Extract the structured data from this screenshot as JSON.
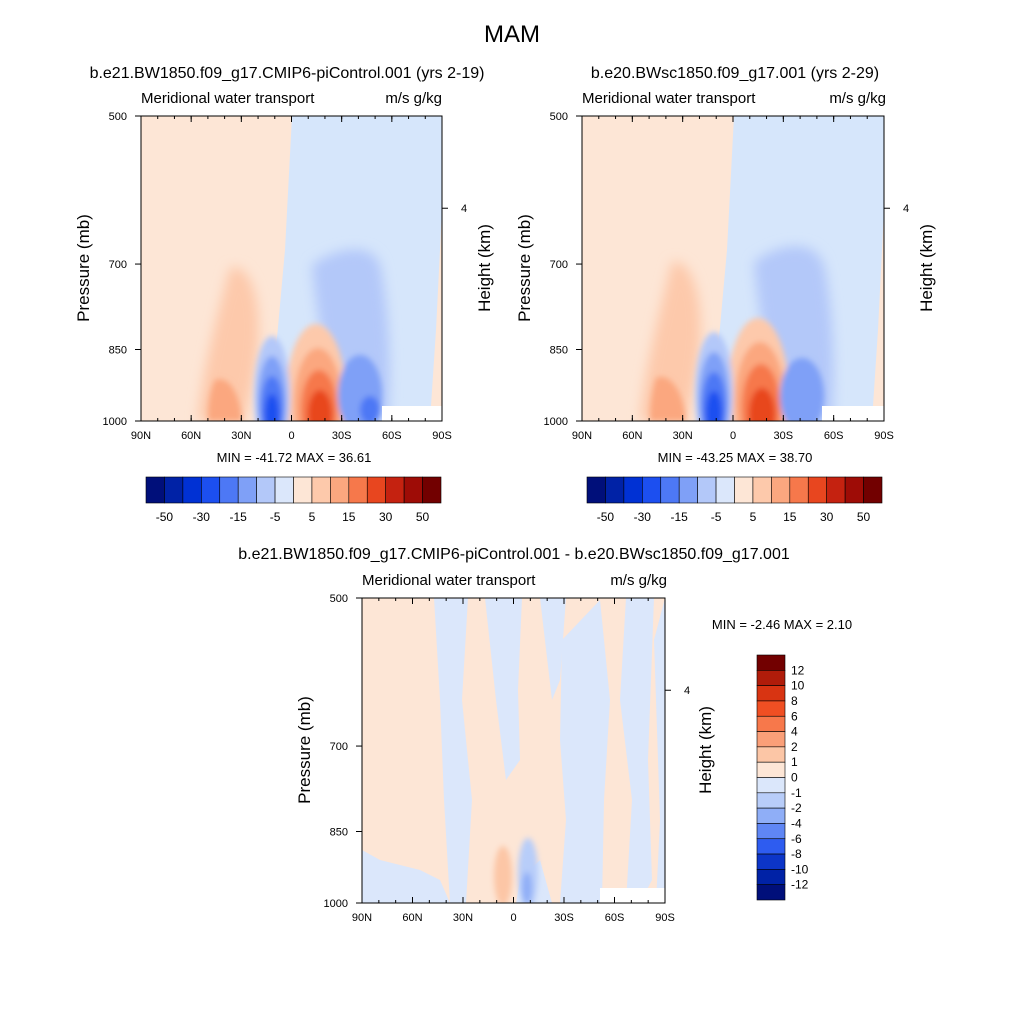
{
  "figure": {
    "title": "MAM"
  },
  "chart_data": [
    {
      "type": "heatmap",
      "title": "b.e21.BW1850.f09_g17.CMIP6-piControl.001 (yrs 2-19)",
      "left_string": "Meridional water transport",
      "right_string": "m/s g/kg",
      "ylabel": "Pressure (mb)",
      "y2label": "Height (km)",
      "y_ticks": [
        500,
        700,
        850,
        1000
      ],
      "y2_ticks": [
        "4"
      ],
      "x_ticks": [
        "90N",
        "60N",
        "30N",
        "0",
        "30S",
        "60S",
        "90S"
      ],
      "stats": "MIN = -41.72  MAX =  36.61",
      "colorbar": {
        "labels": [
          "-50",
          "-30",
          "-15",
          "-5",
          "5",
          "15",
          "30",
          "50"
        ],
        "colors": [
          "#000f7a",
          "#0022a6",
          "#0031d4",
          "#1c4ff0",
          "#4d78f5",
          "#7fa0f7",
          "#b3c8f9",
          "#dbe7fb",
          "#fde6d6",
          "#fdc9ab",
          "#fba77f",
          "#f6784b",
          "#e8461f",
          "#c52210",
          "#9e0c06",
          "#720000"
        ]
      },
      "fields": [
        {
          "level": "-50",
          "color": "#0022a6"
        },
        {
          "level": "-40",
          "color": "#0031d4"
        },
        {
          "level": "-30",
          "color": "#1c4ff0"
        },
        {
          "level": "-15",
          "color": "#4d78f5"
        },
        {
          "level": "-10",
          "color": "#7fa0f7"
        },
        {
          "level": "-5",
          "color": "#b3c8f9"
        },
        {
          "level": "0",
          "color": "#d6e6fb"
        },
        {
          "level": "0+",
          "color": "#fde6d6"
        },
        {
          "level": "5",
          "color": "#fdc9ab"
        },
        {
          "level": "15",
          "color": "#fba77f"
        },
        {
          "level": "30",
          "color": "#f6784b"
        },
        {
          "level": "40",
          "color": "#e8461f"
        }
      ]
    },
    {
      "type": "heatmap",
      "title": "b.e20.BWsc1850.f09_g17.001 (yrs 2-29)",
      "left_string": "Meridional water transport",
      "right_string": "m/s g/kg",
      "ylabel": "Pressure (mb)",
      "y2label": "Height (km)",
      "y_ticks": [
        500,
        700,
        850,
        1000
      ],
      "y2_ticks": [
        "4"
      ],
      "x_ticks": [
        "90N",
        "60N",
        "30N",
        "0",
        "30S",
        "60S",
        "90S"
      ],
      "stats": "MIN = -43.25  MAX =  38.70",
      "colorbar": {
        "labels": [
          "-50",
          "-30",
          "-15",
          "-5",
          "5",
          "15",
          "30",
          "50"
        ],
        "colors": [
          "#000f7a",
          "#0022a6",
          "#0031d4",
          "#1c4ff0",
          "#4d78f5",
          "#7fa0f7",
          "#b3c8f9",
          "#dbe7fb",
          "#fde6d6",
          "#fdc9ab",
          "#fba77f",
          "#f6784b",
          "#e8461f",
          "#c52210",
          "#9e0c06",
          "#720000"
        ]
      }
    },
    {
      "type": "heatmap",
      "title": "b.e21.BW1850.f09_g17.CMIP6-piControl.001 - b.e20.BWsc1850.f09_g17.001",
      "left_string": "Meridional water transport",
      "right_string": "m/s g/kg",
      "ylabel": "Pressure (mb)",
      "y2label": "Height (km)",
      "y_ticks": [
        500,
        700,
        850,
        1000
      ],
      "y2_ticks": [
        "4"
      ],
      "x_ticks": [
        "90N",
        "60N",
        "30N",
        "0",
        "30S",
        "60S",
        "90S"
      ],
      "stats": "MIN =  -2.46  MAX =   2.10",
      "colorbar": {
        "labels": [
          "12",
          "10",
          "8",
          "6",
          "4",
          "2",
          "1",
          "0",
          "-1",
          "-2",
          "-4",
          "-6",
          "-8",
          "-10",
          "-12"
        ],
        "colors": [
          "#720000",
          "#b01c0a",
          "#d83412",
          "#f04f23",
          "#f7784b",
          "#fa9f78",
          "#fcc6a6",
          "#fde6d6",
          "#dbe7fb",
          "#b8cdf9",
          "#8faef7",
          "#5f86f4",
          "#2e5cf0",
          "#0c35c8",
          "#0022a6",
          "#000f7a"
        ]
      }
    }
  ]
}
